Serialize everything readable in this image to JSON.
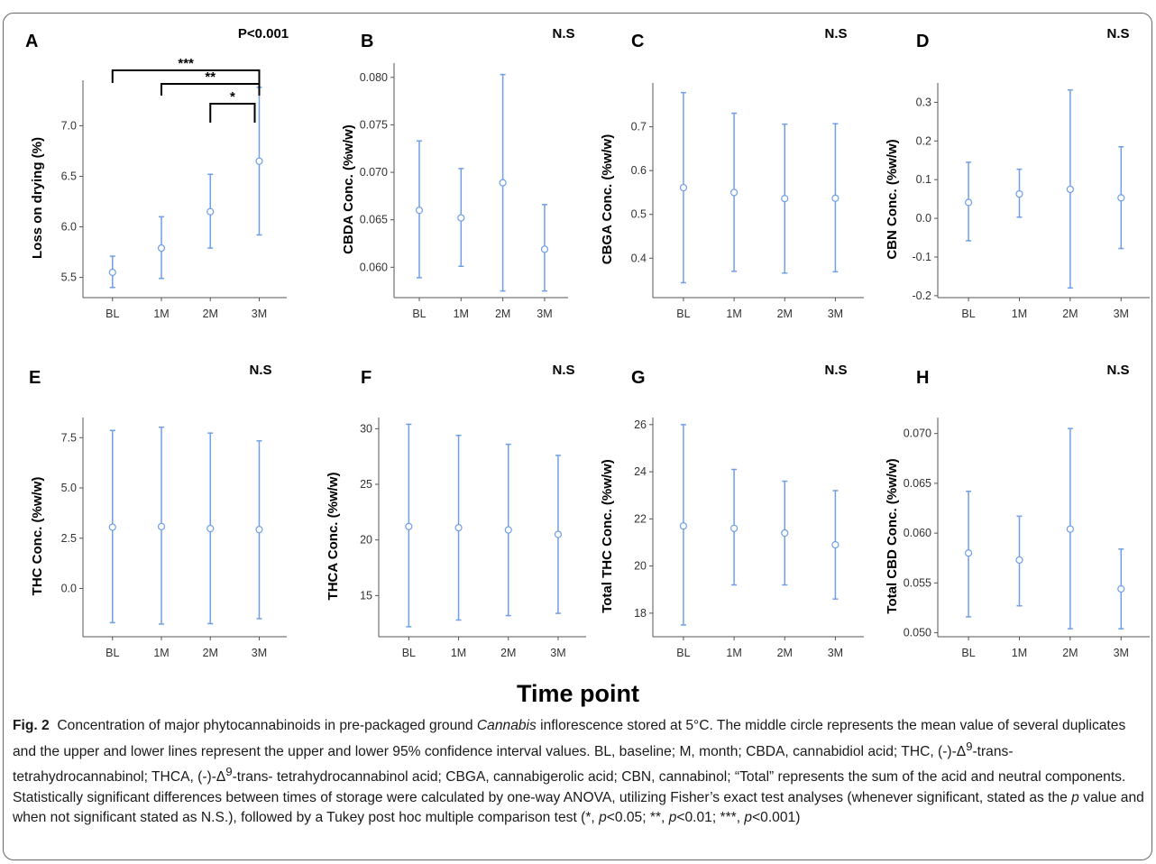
{
  "chart_data": [
    {
      "panel": "A",
      "type": "errorbar",
      "categories": [
        "BL",
        "1M",
        "2M",
        "3M"
      ],
      "ylabel": "Loss on drying (%)",
      "stat": "P<0.001",
      "ylim": [
        5.3,
        7.45
      ],
      "yticks": [
        5.5,
        6.0,
        6.5,
        7.0
      ],
      "ytick_labels": [
        "5.5",
        "6.0",
        "6.5",
        "7.0"
      ],
      "mean": [
        5.55,
        5.79,
        6.15,
        6.65
      ],
      "lower": [
        5.4,
        5.49,
        5.79,
        5.92
      ],
      "upper": [
        5.71,
        6.1,
        6.52,
        7.38
      ],
      "brackets": [
        {
          "from": 0,
          "to": 3,
          "label": "***"
        },
        {
          "from": 1,
          "to": 3,
          "label": "**"
        },
        {
          "from": 2,
          "to": 3,
          "label": "*"
        }
      ]
    },
    {
      "panel": "B",
      "type": "errorbar",
      "categories": [
        "BL",
        "1M",
        "2M",
        "3M"
      ],
      "ylabel": "CBDA Conc. (%w/w)",
      "stat": "N.S",
      "ylim": [
        0.0568,
        0.0815
      ],
      "yticks": [
        0.06,
        0.065,
        0.07,
        0.075,
        0.08
      ],
      "ytick_labels": [
        "0.060",
        "0.065",
        "0.070",
        "0.075",
        "0.080"
      ],
      "mean": [
        0.066,
        0.0652,
        0.0689,
        0.0619
      ],
      "lower": [
        0.0589,
        0.0601,
        0.0575,
        0.0575
      ],
      "upper": [
        0.0733,
        0.0704,
        0.0803,
        0.0666
      ]
    },
    {
      "panel": "C",
      "type": "errorbar",
      "categories": [
        "BL",
        "1M",
        "2M",
        "3M"
      ],
      "ylabel": "CBGA Conc. (%w/w)",
      "stat": "N.S",
      "ylim": [
        0.31,
        0.8
      ],
      "yticks": [
        0.4,
        0.5,
        0.6,
        0.7
      ],
      "ytick_labels": [
        "0.4",
        "0.5",
        "0.6",
        "0.7"
      ],
      "mean": [
        0.561,
        0.55,
        0.536,
        0.537
      ],
      "lower": [
        0.344,
        0.37,
        0.366,
        0.369
      ],
      "upper": [
        0.778,
        0.731,
        0.706,
        0.707
      ]
    },
    {
      "panel": "D",
      "type": "errorbar",
      "categories": [
        "BL",
        "1M",
        "2M",
        "3M"
      ],
      "ylabel": "CBN Conc. (%w/w)",
      "stat": "N.S",
      "ylim": [
        -0.205,
        0.35
      ],
      "yticks": [
        -0.2,
        -0.1,
        0.0,
        0.1,
        0.2,
        0.3
      ],
      "ytick_labels": [
        "-0.2",
        "-0.1",
        "0.0",
        "0.1",
        "0.2",
        "0.3"
      ],
      "mean": [
        0.041,
        0.063,
        0.075,
        0.053
      ],
      "lower": [
        -0.058,
        0.003,
        -0.18,
        -0.078
      ],
      "upper": [
        0.145,
        0.127,
        0.332,
        0.185
      ]
    },
    {
      "panel": "E",
      "type": "errorbar",
      "categories": [
        "BL",
        "1M",
        "2M",
        "3M"
      ],
      "ylabel": "THC Conc. (%w/w)",
      "stat": "N.S",
      "ylim": [
        -2.4,
        8.5
      ],
      "yticks": [
        0.0,
        2.5,
        5.0,
        7.5
      ],
      "ytick_labels": [
        "0.0",
        "2.5",
        "5.0",
        "7.5"
      ],
      "mean": [
        3.05,
        3.08,
        2.98,
        2.93
      ],
      "lower": [
        -1.7,
        -1.77,
        -1.75,
        -1.5
      ],
      "upper": [
        7.86,
        8.02,
        7.73,
        7.34
      ]
    },
    {
      "panel": "F",
      "type": "errorbar",
      "categories": [
        "BL",
        "1M",
        "2M",
        "3M"
      ],
      "ylabel": "THCA Conc. (%w/w)",
      "stat": "N.S",
      "ylim": [
        11.3,
        31.0
      ],
      "yticks": [
        15,
        20,
        25,
        30
      ],
      "ytick_labels": [
        "15",
        "20",
        "25",
        "30"
      ],
      "mean": [
        21.2,
        21.1,
        20.9,
        20.5
      ],
      "lower": [
        12.2,
        12.8,
        13.2,
        13.4
      ],
      "upper": [
        30.4,
        29.4,
        28.6,
        27.6
      ]
    },
    {
      "panel": "G",
      "type": "errorbar",
      "categories": [
        "BL",
        "1M",
        "2M",
        "3M"
      ],
      "ylabel": "Total THC Conc. (%w/w)",
      "stat": "N.S",
      "ylim": [
        17.0,
        26.3
      ],
      "yticks": [
        18,
        20,
        22,
        24,
        26
      ],
      "ytick_labels": [
        "18",
        "20",
        "22",
        "24",
        "26"
      ],
      "mean": [
        21.7,
        21.6,
        21.4,
        20.9
      ],
      "lower": [
        17.5,
        19.2,
        19.2,
        18.6
      ],
      "upper": [
        26.0,
        24.1,
        23.6,
        23.2
      ]
    },
    {
      "panel": "H",
      "type": "errorbar",
      "categories": [
        "BL",
        "1M",
        "2M",
        "3M"
      ],
      "ylabel": "Total CBD Conc. (%w/w)",
      "stat": "N.S",
      "ylim": [
        0.0496,
        0.0716
      ],
      "yticks": [
        0.05,
        0.055,
        0.06,
        0.065,
        0.07
      ],
      "ytick_labels": [
        "0.050",
        "0.055",
        "0.060",
        "0.065",
        "0.070"
      ],
      "mean": [
        0.058,
        0.0573,
        0.0604,
        0.0544
      ],
      "lower": [
        0.0516,
        0.0527,
        0.0504,
        0.0504
      ],
      "upper": [
        0.0642,
        0.0617,
        0.0705,
        0.0584
      ]
    }
  ],
  "xlabel": "Time point",
  "caption": {
    "fig_label": "Fig. 2",
    "html": "Concentration of major phytocannabinoids in pre-packaged ground <i>Cannabis</i> inflorescence stored at 5°C. The middle circle represents the mean value of several duplicates and the upper and lower lines represent the upper and lower 95% confidence interval values. BL, baseline; M, month; CBDA, cannabidiol acid; THC, (-)-Δ<sup>9</sup>-trans- tetrahydrocannabinol; THCA, (-)-Δ<sup>9</sup>-trans- tetrahydrocannabinol acid; CBGA, cannabigerolic acid; CBN, cannabinol; “Total” represents the sum of the acid and neutral components. Statistically significant differences between times of storage were calculated by one-way ANOVA, utilizing Fisher’s exact test analyses (whenever significant, stated as the <i>p</i> value and when not significant stated as N.S.), followed by a Tukey post hoc multiple comparison test (*, <i>p</i>&lt;0.05; **, <i>p</i>&lt;0.01; ***, <i>p</i>&lt;0.001)"
  },
  "colors": {
    "series": "#6f9fe6",
    "point_fill": "#ffffff",
    "axis": "#555555",
    "text": "#000000"
  }
}
